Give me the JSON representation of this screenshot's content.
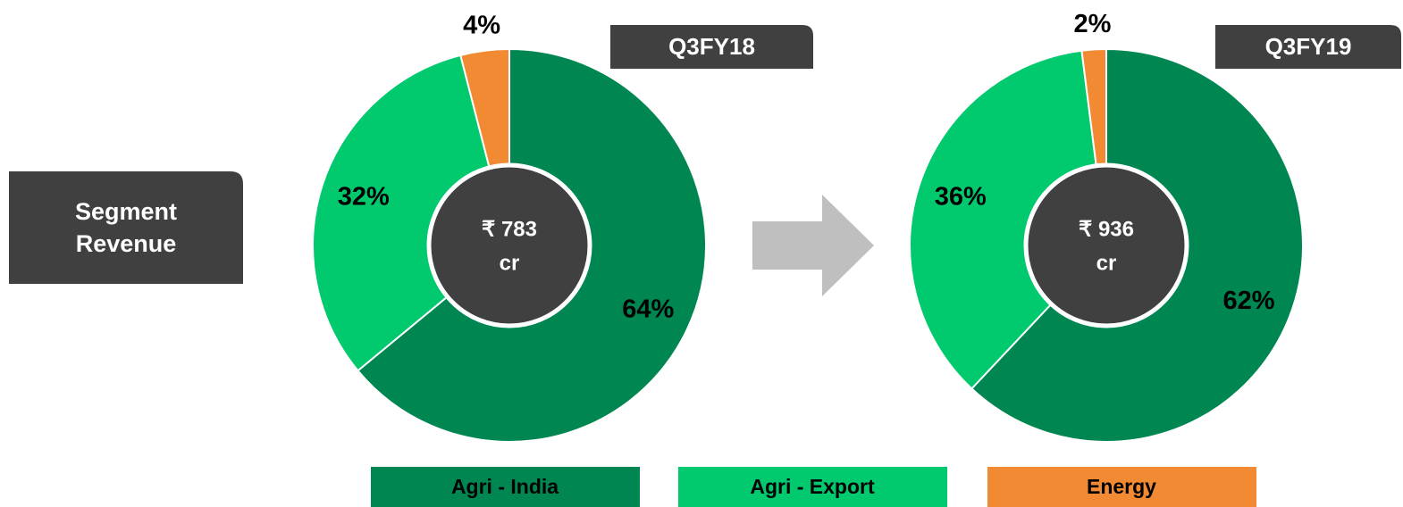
{
  "side_label": "Segment Revenue",
  "chart_data": [
    {
      "type": "donut",
      "title": "Q3FY18",
      "center_lines": [
        "₹ 783",
        "cr"
      ],
      "categories": [
        "Agri - India",
        "Agri - Export",
        "Energy"
      ],
      "values": [
        64,
        32,
        4
      ],
      "value_labels": [
        "64%",
        "32%",
        "4%"
      ],
      "colors": [
        "#008751",
        "#00c96e",
        "#f28a34"
      ]
    },
    {
      "type": "donut",
      "title": "Q3FY19",
      "center_lines": [
        "₹ 936",
        "cr"
      ],
      "categories": [
        "Agri - India",
        "Agri - Export",
        "Energy"
      ],
      "values": [
        62,
        36,
        2
      ],
      "value_labels": [
        "62%",
        "36%",
        "2%"
      ],
      "colors": [
        "#008751",
        "#00c96e",
        "#f28a34"
      ]
    }
  ]
}
